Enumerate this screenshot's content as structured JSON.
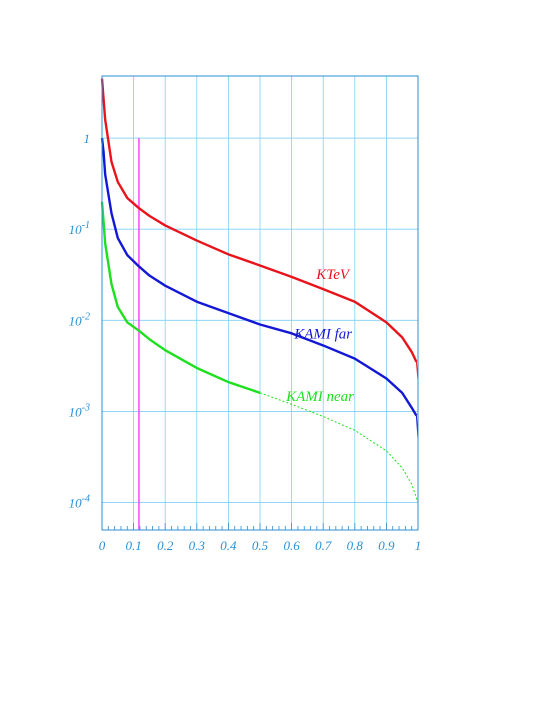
{
  "chart_data": {
    "type": "line",
    "title": "",
    "xlabel": "",
    "ylabel": "",
    "xlim": [
      0,
      1
    ],
    "ylim": [
      5e-05,
      4.8
    ],
    "yscale": "log",
    "grid": true,
    "x_ticks": [
      "0",
      "0.1",
      "0.2",
      "0.3",
      "0.4",
      "0.5",
      "0.6",
      "0.7",
      "0.8",
      "0.9",
      "1"
    ],
    "y_ticks": [
      {
        "value": 1,
        "base": "1",
        "exp": ""
      },
      {
        "value": 0.1,
        "base": "10",
        "exp": "-1"
      },
      {
        "value": 0.01,
        "base": "10",
        "exp": "-2"
      },
      {
        "value": 0.001,
        "base": "10",
        "exp": "-3"
      },
      {
        "value": 0.0001,
        "base": "10",
        "exp": "-4"
      }
    ],
    "vertical_marker": {
      "x": 0.117,
      "y_top": 1.0,
      "color": "#ff44ff"
    },
    "series": [
      {
        "name": "KTeV",
        "color": "#e8141c",
        "x": [
          0.0,
          0.01,
          0.03,
          0.05,
          0.08,
          0.117,
          0.15,
          0.2,
          0.3,
          0.4,
          0.5,
          0.6,
          0.7,
          0.8,
          0.9,
          0.95,
          0.98,
          0.995,
          1.0
        ],
        "y": [
          4.5,
          1.6,
          0.55,
          0.33,
          0.22,
          0.17,
          0.14,
          0.11,
          0.075,
          0.053,
          0.04,
          0.03,
          0.022,
          0.016,
          0.0095,
          0.0065,
          0.0045,
          0.0035,
          0.0022
        ],
        "dashed_from": null
      },
      {
        "name": "KAMI far",
        "color": "#1418d4",
        "x": [
          0.0,
          0.005,
          0.01,
          0.03,
          0.05,
          0.08,
          0.117,
          0.15,
          0.2,
          0.3,
          0.4,
          0.5,
          0.6,
          0.7,
          0.8,
          0.9,
          0.95,
          0.98,
          0.995,
          1.0
        ],
        "y": [
          1.0,
          0.7,
          0.4,
          0.15,
          0.08,
          0.052,
          0.039,
          0.031,
          0.024,
          0.016,
          0.012,
          0.009,
          0.0072,
          0.0053,
          0.0038,
          0.0023,
          0.0016,
          0.0011,
          0.0009,
          0.0005
        ],
        "dashed_from": null
      },
      {
        "name": "KAMI near",
        "color": "#1ee01e",
        "x": [
          0.0,
          0.005,
          0.01,
          0.03,
          0.05,
          0.08,
          0.117,
          0.15,
          0.2,
          0.3,
          0.4,
          0.5,
          0.6,
          0.7,
          0.8,
          0.9,
          0.95,
          0.98,
          1.0
        ],
        "y": [
          0.2,
          0.12,
          0.07,
          0.025,
          0.014,
          0.0095,
          0.0077,
          0.0062,
          0.0047,
          0.003,
          0.0021,
          0.0016,
          0.0012,
          0.00088,
          0.00062,
          0.00037,
          0.00024,
          0.00016,
          0.0001
        ],
        "dashed_from": 0.5
      }
    ],
    "series_labels": [
      {
        "text": "KTeV",
        "color": "#e8141c",
        "x": 0.73,
        "y": 0.0285
      },
      {
        "text": "KAMI far",
        "color": "#1418d4",
        "x": 0.7,
        "y": 0.0063
      },
      {
        "text": "KAMI near",
        "color": "#1ee01e",
        "x": 0.69,
        "y": 0.0013
      }
    ]
  }
}
